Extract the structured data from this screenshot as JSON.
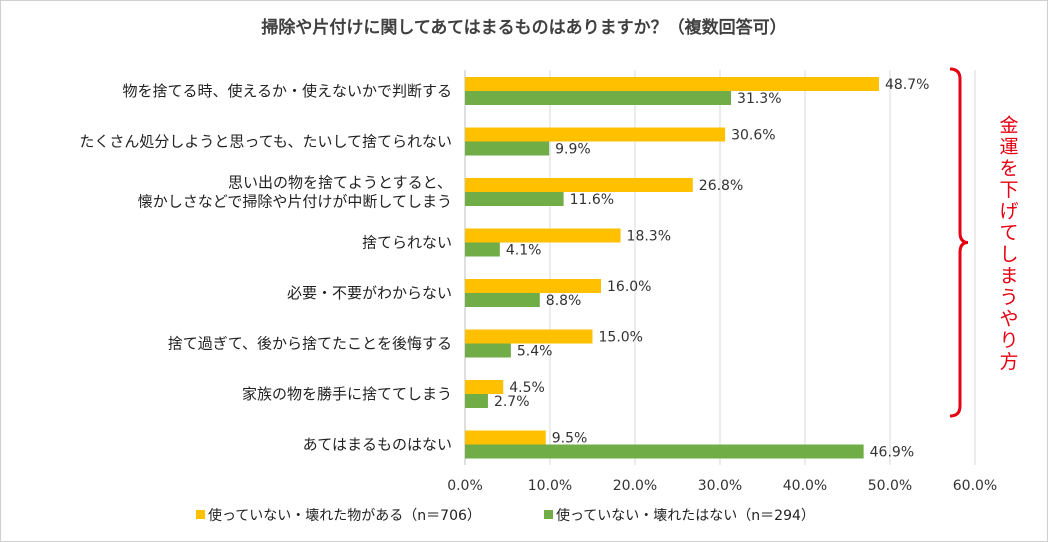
{
  "chart_data": {
    "type": "bar",
    "orientation": "horizontal",
    "title": "掃除や片付けに関してあてはまるものはありますか？（複数回答可）",
    "categories": [
      [
        "物を捨てる時、使えるか・使えないかで判断する"
      ],
      [
        "たくさん処分しようと思っても、たいして捨てられない"
      ],
      [
        "思い出の物を捨てようとすると、",
        "懐かしさなどで掃除や片付けが中断してしまう"
      ],
      [
        "捨てられない"
      ],
      [
        "必要・不要がわからない"
      ],
      [
        "捨て過ぎて、後から捨てたことを後悔する"
      ],
      [
        "家族の物を勝手に捨ててしまう"
      ],
      [
        "あてはまるものはない"
      ]
    ],
    "series": [
      {
        "name": "使っていない・壊れた物がある（n＝706）",
        "color": "#ffc000",
        "values": [
          48.7,
          30.6,
          26.8,
          18.3,
          16.0,
          15.0,
          4.5,
          9.5
        ],
        "labels": [
          "48.7%",
          "30.6%",
          "26.8%",
          "18.3%",
          "16.0%",
          "15.0%",
          "4.5%",
          "9.5%"
        ]
      },
      {
        "name": "使っていない・壊れたはない（n＝294）",
        "color": "#70ad47",
        "values": [
          31.3,
          9.9,
          11.6,
          4.1,
          8.8,
          5.4,
          2.7,
          46.9
        ],
        "labels": [
          "31.3%",
          "9.9%",
          "11.6%",
          "4.1%",
          "8.8%",
          "5.4%",
          "2.7%",
          "46.9%"
        ]
      }
    ],
    "xlim": [
      0,
      60
    ],
    "xticks": [
      0,
      10,
      20,
      30,
      40,
      50,
      60
    ],
    "xtick_labels": [
      "0.0%",
      "10.0%",
      "20.0%",
      "30.0%",
      "40.0%",
      "50.0%",
      "60.0%"
    ],
    "gridlines": true,
    "legend_position": "bottom",
    "annotation": {
      "text": "金運を下げてしまうやり方",
      "color": "#e60012",
      "spans_categories": [
        0,
        6
      ]
    }
  }
}
